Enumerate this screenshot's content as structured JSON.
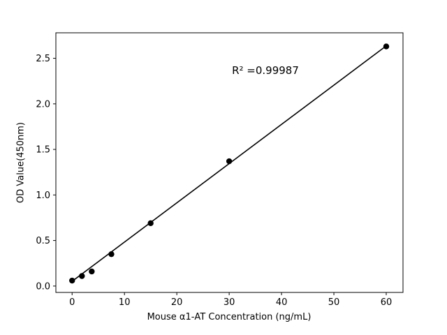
{
  "chart_data": {
    "type": "scatter",
    "title": "",
    "xlabel": "Mouse α1-AT Concentration (ng/mL)",
    "ylabel": "OD Value(450nm)",
    "annotation": "R² =0.99987",
    "x": [
      0,
      1.875,
      3.75,
      7.5,
      15,
      30,
      60
    ],
    "y": [
      0.06,
      0.11,
      0.16,
      0.35,
      0.69,
      1.37,
      2.63
    ],
    "fit_line": {
      "x": [
        0,
        60
      ],
      "y": [
        0.052,
        2.636
      ]
    },
    "xlim": [
      -3.1,
      63.2
    ],
    "ylim": [
      -0.07,
      2.78
    ],
    "xticks": [
      0,
      10,
      20,
      30,
      40,
      50,
      60
    ],
    "xtick_labels": [
      "0",
      "10",
      "20",
      "30",
      "40",
      "50",
      "60"
    ],
    "yticks": [
      0.0,
      0.5,
      1.0,
      1.5,
      2.0,
      2.5
    ],
    "ytick_labels": [
      "0.0",
      "0.5",
      "1.0",
      "1.5",
      "2.0",
      "2.5"
    ],
    "grid": false,
    "legend": "none",
    "marker_color": "#000000",
    "line_color": "#000000",
    "axis_color": "#000000",
    "background": "#ffffff"
  }
}
